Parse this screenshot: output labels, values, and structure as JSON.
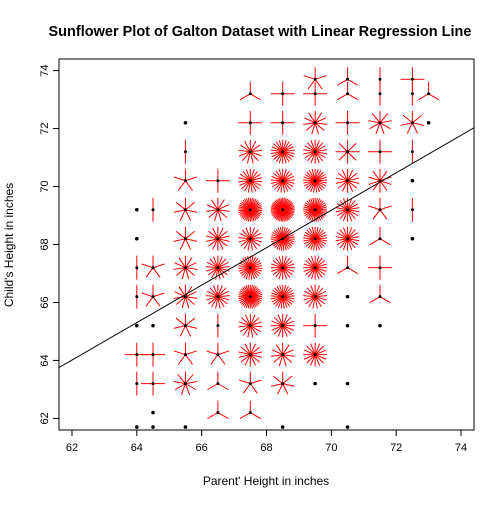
{
  "chart_data": {
    "type": "scatter",
    "title": "Sunflower Plot of Galton Dataset with Linear Regression Line",
    "xlabel": "Parent' Height in inches",
    "ylabel": "Child's Height in inches",
    "xlim": [
      61.6,
      74.4
    ],
    "ylim": [
      61.6,
      74.4
    ],
    "xticks": [
      62,
      64,
      66,
      68,
      70,
      72,
      74
    ],
    "yticks": [
      62,
      64,
      66,
      68,
      70,
      72,
      74
    ],
    "grid": false,
    "legend": "none",
    "colors": {
      "points": "#000000",
      "petals": "#ff0000",
      "line": "#000000"
    },
    "regression_line": {
      "intercept": 23.94153,
      "slope": 0.6462906
    },
    "points": [
      {
        "x": 64.0,
        "y": 61.7,
        "n": 1
      },
      {
        "x": 64.5,
        "y": 61.7,
        "n": 1
      },
      {
        "x": 65.5,
        "y": 61.7,
        "n": 1
      },
      {
        "x": 68.5,
        "y": 61.7,
        "n": 1
      },
      {
        "x": 70.5,
        "y": 61.7,
        "n": 1
      },
      {
        "x": 64.5,
        "y": 62.2,
        "n": 1
      },
      {
        "x": 66.5,
        "y": 62.2,
        "n": 3
      },
      {
        "x": 67.5,
        "y": 62.2,
        "n": 3
      },
      {
        "x": 64.0,
        "y": 63.2,
        "n": 2
      },
      {
        "x": 64.5,
        "y": 63.2,
        "n": 4
      },
      {
        "x": 65.5,
        "y": 63.2,
        "n": 9
      },
      {
        "x": 66.5,
        "y": 63.2,
        "n": 3
      },
      {
        "x": 67.5,
        "y": 63.2,
        "n": 5
      },
      {
        "x": 68.5,
        "y": 63.2,
        "n": 7
      },
      {
        "x": 69.5,
        "y": 63.2,
        "n": 1
      },
      {
        "x": 70.5,
        "y": 63.2,
        "n": 1
      },
      {
        "x": 64.0,
        "y": 64.2,
        "n": 4
      },
      {
        "x": 64.5,
        "y": 64.2,
        "n": 4
      },
      {
        "x": 65.5,
        "y": 64.2,
        "n": 5
      },
      {
        "x": 66.5,
        "y": 64.2,
        "n": 5
      },
      {
        "x": 67.5,
        "y": 64.2,
        "n": 14
      },
      {
        "x": 68.5,
        "y": 64.2,
        "n": 11
      },
      {
        "x": 69.5,
        "y": 64.2,
        "n": 16
      },
      {
        "x": 64.0,
        "y": 65.2,
        "n": 1
      },
      {
        "x": 64.5,
        "y": 65.2,
        "n": 1
      },
      {
        "x": 65.5,
        "y": 65.2,
        "n": 7
      },
      {
        "x": 66.5,
        "y": 65.2,
        "n": 2
      },
      {
        "x": 67.5,
        "y": 65.2,
        "n": 15
      },
      {
        "x": 68.5,
        "y": 65.2,
        "n": 16
      },
      {
        "x": 69.5,
        "y": 65.2,
        "n": 4
      },
      {
        "x": 70.5,
        "y": 65.2,
        "n": 1
      },
      {
        "x": 71.5,
        "y": 65.2,
        "n": 1
      },
      {
        "x": 64.0,
        "y": 66.2,
        "n": 2
      },
      {
        "x": 64.5,
        "y": 66.2,
        "n": 5
      },
      {
        "x": 65.5,
        "y": 66.2,
        "n": 11
      },
      {
        "x": 66.5,
        "y": 66.2,
        "n": 17
      },
      {
        "x": 67.5,
        "y": 66.2,
        "n": 36
      },
      {
        "x": 68.5,
        "y": 66.2,
        "n": 25
      },
      {
        "x": 69.5,
        "y": 66.2,
        "n": 17
      },
      {
        "x": 70.5,
        "y": 66.2,
        "n": 1
      },
      {
        "x": 71.5,
        "y": 66.2,
        "n": 3
      },
      {
        "x": 64.0,
        "y": 67.2,
        "n": 2
      },
      {
        "x": 64.5,
        "y": 67.2,
        "n": 5
      },
      {
        "x": 65.5,
        "y": 67.2,
        "n": 11
      },
      {
        "x": 66.5,
        "y": 67.2,
        "n": 17
      },
      {
        "x": 67.5,
        "y": 67.2,
        "n": 27
      },
      {
        "x": 68.5,
        "y": 67.2,
        "n": 20
      },
      {
        "x": 69.5,
        "y": 67.2,
        "n": 20
      },
      {
        "x": 70.5,
        "y": 67.2,
        "n": 3
      },
      {
        "x": 71.5,
        "y": 67.2,
        "n": 4
      },
      {
        "x": 64.0,
        "y": 68.2,
        "n": 1
      },
      {
        "x": 65.5,
        "y": 68.2,
        "n": 7
      },
      {
        "x": 66.5,
        "y": 68.2,
        "n": 14
      },
      {
        "x": 67.5,
        "y": 68.2,
        "n": 17
      },
      {
        "x": 68.5,
        "y": 68.2,
        "n": 31
      },
      {
        "x": 69.5,
        "y": 68.2,
        "n": 25
      },
      {
        "x": 70.5,
        "y": 68.2,
        "n": 18
      },
      {
        "x": 71.5,
        "y": 68.2,
        "n": 3
      },
      {
        "x": 72.5,
        "y": 68.2,
        "n": 1
      },
      {
        "x": 64.0,
        "y": 69.2,
        "n": 1
      },
      {
        "x": 64.5,
        "y": 69.2,
        "n": 2
      },
      {
        "x": 65.5,
        "y": 69.2,
        "n": 7
      },
      {
        "x": 66.5,
        "y": 69.2,
        "n": 11
      },
      {
        "x": 67.5,
        "y": 69.2,
        "n": 38
      },
      {
        "x": 68.5,
        "y": 69.2,
        "n": 44
      },
      {
        "x": 69.5,
        "y": 69.2,
        "n": 33
      },
      {
        "x": 70.5,
        "y": 69.2,
        "n": 18
      },
      {
        "x": 71.5,
        "y": 69.2,
        "n": 5
      },
      {
        "x": 72.5,
        "y": 69.2,
        "n": 2
      },
      {
        "x": 65.5,
        "y": 70.2,
        "n": 5
      },
      {
        "x": 66.5,
        "y": 70.2,
        "n": 4
      },
      {
        "x": 67.5,
        "y": 70.2,
        "n": 19
      },
      {
        "x": 68.5,
        "y": 70.2,
        "n": 21
      },
      {
        "x": 69.5,
        "y": 70.2,
        "n": 25
      },
      {
        "x": 70.5,
        "y": 70.2,
        "n": 14
      },
      {
        "x": 71.5,
        "y": 70.2,
        "n": 10
      },
      {
        "x": 72.5,
        "y": 70.2,
        "n": 1
      },
      {
        "x": 65.5,
        "y": 71.2,
        "n": 2
      },
      {
        "x": 67.5,
        "y": 71.2,
        "n": 13
      },
      {
        "x": 68.5,
        "y": 71.2,
        "n": 22
      },
      {
        "x": 69.5,
        "y": 71.2,
        "n": 18
      },
      {
        "x": 70.5,
        "y": 71.2,
        "n": 8
      },
      {
        "x": 71.5,
        "y": 71.2,
        "n": 4
      },
      {
        "x": 72.5,
        "y": 71.2,
        "n": 2
      },
      {
        "x": 65.5,
        "y": 72.2,
        "n": 1
      },
      {
        "x": 67.5,
        "y": 72.2,
        "n": 4
      },
      {
        "x": 68.5,
        "y": 72.2,
        "n": 4
      },
      {
        "x": 69.5,
        "y": 72.2,
        "n": 11
      },
      {
        "x": 70.5,
        "y": 72.2,
        "n": 4
      },
      {
        "x": 71.5,
        "y": 72.2,
        "n": 9
      },
      {
        "x": 72.5,
        "y": 72.2,
        "n": 7
      },
      {
        "x": 73.0,
        "y": 72.2,
        "n": 1
      },
      {
        "x": 67.5,
        "y": 73.2,
        "n": 3
      },
      {
        "x": 68.5,
        "y": 73.2,
        "n": 4
      },
      {
        "x": 69.5,
        "y": 73.2,
        "n": 4
      },
      {
        "x": 70.5,
        "y": 73.2,
        "n": 3
      },
      {
        "x": 71.5,
        "y": 73.2,
        "n": 2
      },
      {
        "x": 72.5,
        "y": 73.2,
        "n": 2
      },
      {
        "x": 73.0,
        "y": 73.2,
        "n": 3
      },
      {
        "x": 69.5,
        "y": 73.7,
        "n": 5
      },
      {
        "x": 70.5,
        "y": 73.7,
        "n": 3
      },
      {
        "x": 71.5,
        "y": 73.7,
        "n": 2
      },
      {
        "x": 72.5,
        "y": 73.7,
        "n": 4
      }
    ]
  }
}
